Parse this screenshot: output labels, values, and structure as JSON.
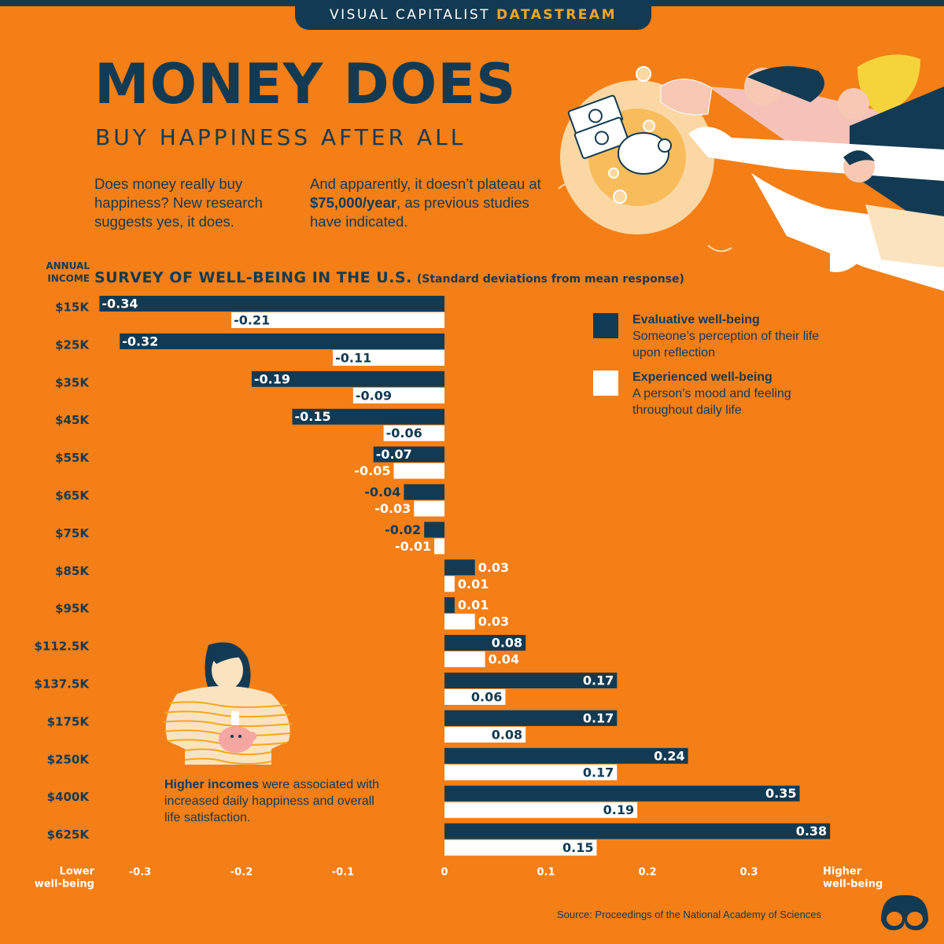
{
  "brand": {
    "name": "VISUAL CAPITALIST",
    "product": "DATASTREAM"
  },
  "headline": "MONEY DOES",
  "subhead": "BUY HAPPINESS AFTER ALL",
  "intro_left": "Does money really buy happiness? New research suggests yes, it does.",
  "intro_right": {
    "before": "And apparently, it doesn’t plateau at ",
    "bold": "$75,000/year",
    "after": ", as previous studies have indicated."
  },
  "caption": {
    "bold": "Higher incomes",
    "rest": " were associated with increased daily happiness and overall life satisfaction."
  },
  "source": "Source: Proceedings of the National Academy of Sciences",
  "colors": {
    "background": "#f47f16",
    "navy": "#123a52",
    "white": "#ffffff",
    "gold": "#f5a623"
  },
  "chart_data": {
    "type": "bar",
    "orientation": "horizontal",
    "title": "SURVEY OF WELL-BEING IN THE U.S.",
    "subtitle": "(Standard deviations from mean response)",
    "ylabel": "ANNUAL INCOME",
    "xlabel_low": "Lower well-being",
    "xlabel_high": "Higher well-being",
    "xlim": [
      -0.34,
      0.38
    ],
    "xticks": [
      -0.3,
      -0.2,
      -0.1,
      0,
      0.1,
      0.2,
      0.3
    ],
    "xtick_labels": [
      "-0.3",
      "-0.2",
      "-0.1",
      "0",
      "0.1",
      "0.2",
      "0.3"
    ],
    "categories": [
      "$15K",
      "$25K",
      "$35K",
      "$45K",
      "$55K",
      "$65K",
      "$75K",
      "$85K",
      "$95K",
      "$112.5K",
      "$137.5K",
      "$175K",
      "$250K",
      "$400K",
      "$625K"
    ],
    "series": [
      {
        "name": "Evaluative well-being",
        "description": "Someone’s perception of their life upon reflection",
        "color": "#123a52",
        "values": [
          -0.34,
          -0.32,
          -0.19,
          -0.15,
          -0.07,
          -0.04,
          -0.02,
          0.03,
          0.01,
          0.08,
          0.17,
          0.17,
          0.24,
          0.35,
          0.38
        ],
        "labels": [
          "-0.34",
          "-0.32",
          "-0.19",
          "-0.15",
          "-0.07",
          "-0.04",
          "-0.02",
          "0.03",
          "0.01",
          "0.08",
          "0.17",
          "0.17",
          "0.24",
          "0.35",
          "0.38"
        ]
      },
      {
        "name": "Experienced well-being",
        "description": "A person’s mood and feeling throughout daily life",
        "color": "#ffffff",
        "values": [
          -0.21,
          -0.11,
          -0.09,
          -0.06,
          -0.05,
          -0.03,
          -0.01,
          0.01,
          0.03,
          0.04,
          0.06,
          0.08,
          0.17,
          0.19,
          0.15
        ],
        "labels": [
          "-0.21",
          "-0.11",
          "-0.09",
          "-0.06",
          "-0.05",
          "-0.03",
          "-0.01",
          "0.01",
          "0.03",
          "0.04",
          "0.06",
          "0.08",
          "0.17",
          "0.19",
          "0.15"
        ]
      }
    ],
    "legend_position": "right",
    "grid": false
  }
}
